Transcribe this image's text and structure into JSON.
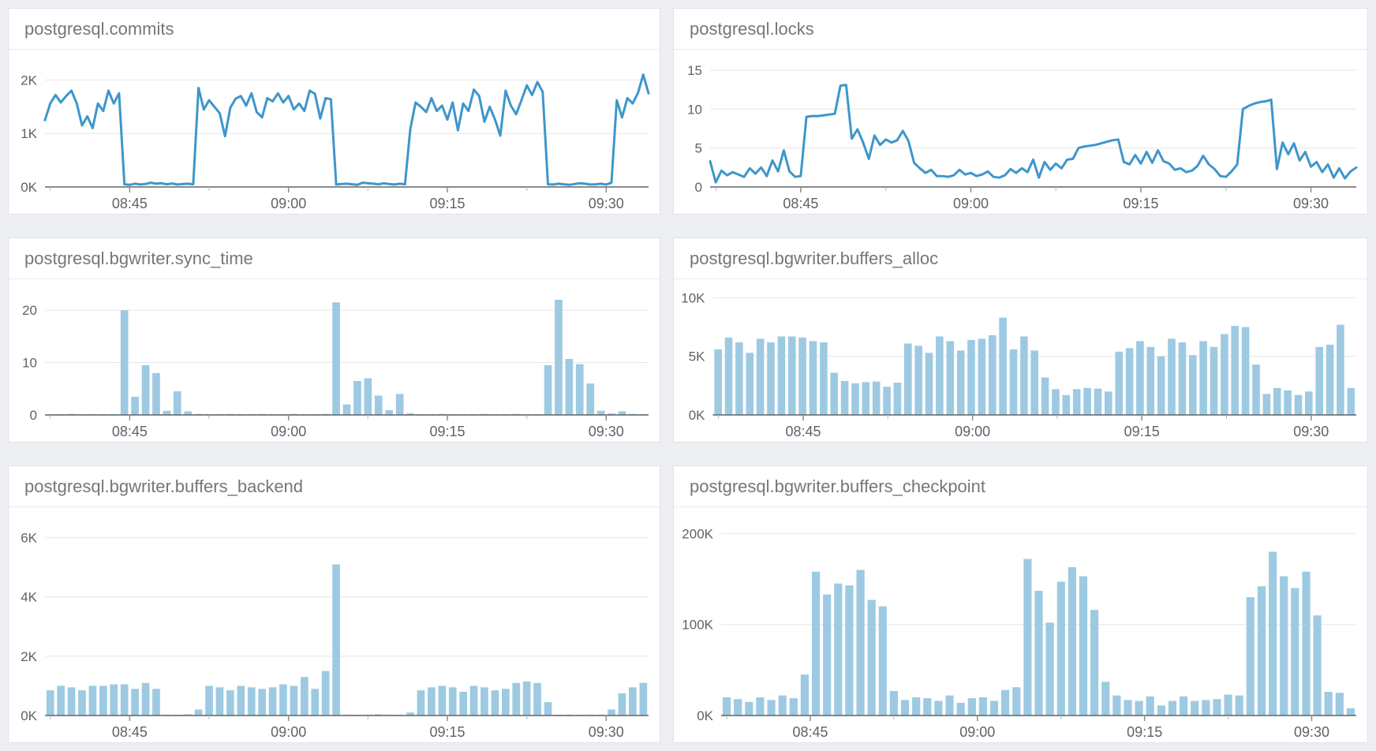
{
  "colors": {
    "line": "#3e96cb",
    "bar": "#9dcae2",
    "grid": "#e6e6e6",
    "baseline": "#606468",
    "tick": "#8a8d90",
    "minor_tick": "#b4b7ba",
    "label": "#5f6367",
    "title": "#73777b",
    "panel_bg": "#ffffff",
    "page_bg": "#edeff2"
  },
  "panels": [
    {
      "title": "postgresql.commits"
    },
    {
      "title": "postgresql.locks"
    },
    {
      "title": "postgresql.bgwriter.sync_time"
    },
    {
      "title": "postgresql.bgwriter.buffers_alloc"
    },
    {
      "title": "postgresql.bgwriter.buffers_backend"
    },
    {
      "title": "postgresql.bgwriter.buffers_checkpoint"
    }
  ],
  "chart_data": [
    {
      "type": "line",
      "title": "postgresql.commits",
      "x": {
        "start": "08:37",
        "end": "09:34",
        "step_seconds": 30,
        "ticks": [
          "08:45",
          "09:00",
          "09:15",
          "09:30"
        ]
      },
      "y": {
        "max": 2330,
        "ticks": [
          {
            "label": "0K",
            "value": 0
          },
          {
            "label": "1K",
            "value": 1000
          },
          {
            "label": "2K",
            "value": 2000
          }
        ]
      },
      "values": [
        1250,
        1560,
        1720,
        1580,
        1700,
        1800,
        1560,
        1150,
        1320,
        1100,
        1560,
        1420,
        1800,
        1560,
        1750,
        50,
        40,
        60,
        45,
        55,
        80,
        60,
        70,
        50,
        65,
        45,
        55,
        60,
        50,
        1850,
        1450,
        1620,
        1500,
        1380,
        950,
        1480,
        1650,
        1700,
        1520,
        1750,
        1400,
        1300,
        1660,
        1600,
        1750,
        1580,
        1700,
        1450,
        1560,
        1420,
        1800,
        1740,
        1280,
        1660,
        1640,
        45,
        55,
        60,
        50,
        40,
        80,
        70,
        60,
        50,
        70,
        55,
        45,
        60,
        50,
        1080,
        1580,
        1500,
        1400,
        1660,
        1420,
        1520,
        1260,
        1580,
        1060,
        1560,
        1420,
        1820,
        1700,
        1220,
        1500,
        1260,
        960,
        1800,
        1520,
        1360,
        1620,
        1900,
        1720,
        1960,
        1780,
        50,
        45,
        60,
        50,
        40,
        55,
        70,
        60,
        45,
        50,
        60,
        45,
        80,
        1620,
        1300,
        1660,
        1560,
        1760,
        2100,
        1750
      ]
    },
    {
      "type": "line",
      "title": "postgresql.locks",
      "x": {
        "start": "08:37",
        "end": "09:34",
        "step_seconds": 30,
        "ticks": [
          "08:45",
          "09:00",
          "09:15",
          "09:30"
        ]
      },
      "y": {
        "max": 16,
        "ticks": [
          {
            "label": "0",
            "value": 0
          },
          {
            "label": "5",
            "value": 5
          },
          {
            "label": "10",
            "value": 10
          },
          {
            "label": "15",
            "value": 15
          }
        ]
      },
      "values": [
        3.3,
        0.6,
        2.1,
        1.5,
        1.9,
        1.6,
        1.3,
        2.4,
        1.7,
        2.5,
        1.4,
        3.4,
        2.0,
        4.7,
        2.0,
        1.3,
        1.4,
        9.0,
        9.1,
        9.1,
        9.2,
        9.3,
        9.4,
        13.0,
        13.1,
        6.2,
        7.4,
        5.7,
        3.6,
        6.6,
        5.4,
        6.1,
        5.7,
        6.0,
        7.2,
        5.9,
        3.1,
        2.4,
        1.8,
        2.2,
        1.4,
        1.4,
        1.3,
        1.5,
        2.2,
        1.6,
        1.8,
        1.4,
        1.6,
        2.0,
        1.3,
        1.2,
        1.5,
        2.3,
        1.8,
        2.4,
        1.9,
        3.5,
        1.2,
        3.2,
        2.2,
        3.0,
        2.4,
        3.5,
        3.6,
        5.0,
        5.2,
        5.3,
        5.4,
        5.6,
        5.8,
        6.0,
        6.1,
        3.2,
        2.9,
        4.1,
        3.0,
        4.5,
        3.1,
        4.7,
        3.3,
        3.0,
        2.2,
        2.4,
        1.9,
        2.1,
        2.7,
        4.0,
        2.9,
        2.3,
        1.4,
        1.3,
        2.0,
        2.9,
        10.0,
        10.4,
        10.7,
        10.9,
        11.0,
        11.2,
        2.3,
        5.7,
        4.2,
        5.6,
        3.4,
        4.5,
        2.6,
        3.2,
        1.9,
        2.9,
        1.2,
        2.4,
        1.1,
        2.0,
        2.5
      ]
    },
    {
      "type": "bar",
      "title": "postgresql.bgwriter.sync_time",
      "x": {
        "start": "08:37",
        "end": "09:34",
        "step_seconds": 60,
        "ticks": [
          "08:45",
          "09:00",
          "09:15",
          "09:30"
        ]
      },
      "y": {
        "max": 23.5,
        "ticks": [
          {
            "label": "0",
            "value": 0
          },
          {
            "label": "10",
            "value": 10
          },
          {
            "label": "20",
            "value": 20
          }
        ]
      },
      "values": [
        0.15,
        0.1,
        0.2,
        0.1,
        0.15,
        0.1,
        0.15,
        20,
        3.5,
        9.5,
        8,
        0.8,
        4.5,
        0.7,
        0.2,
        0.15,
        0.1,
        0.2,
        0.1,
        0.15,
        0.2,
        0.1,
        0.15,
        0.2,
        0.1,
        0.15,
        0.2,
        21.5,
        2,
        6.5,
        7,
        3.7,
        0.9,
        4,
        0.3,
        0.15,
        0.1,
        0.2,
        0.1,
        0.15,
        0.1,
        0.2,
        0.15,
        0.1,
        0.2,
        0.1,
        0.15,
        9.5,
        22,
        10.7,
        9.7,
        6,
        0.8,
        0.3,
        0.7,
        0.2,
        0.1
      ]
    },
    {
      "type": "bar",
      "title": "postgresql.bgwriter.buffers_alloc",
      "x": {
        "start": "08:37",
        "end": "09:34",
        "step_seconds": 56,
        "ticks": [
          "08:45",
          "09:00",
          "09:15",
          "09:30"
        ]
      },
      "y": {
        "max": 10500,
        "ticks": [
          {
            "label": "0K",
            "value": 0
          },
          {
            "label": "5K",
            "value": 5000
          },
          {
            "label": "10K",
            "value": 10000
          }
        ]
      },
      "values": [
        5600,
        6600,
        6200,
        5300,
        6500,
        6200,
        6700,
        6700,
        6600,
        6300,
        6200,
        3600,
        2900,
        2700,
        2800,
        2850,
        2400,
        2750,
        6100,
        5900,
        5300,
        6700,
        6300,
        5500,
        6400,
        6500,
        6800,
        8300,
        5600,
        6700,
        5500,
        3200,
        2200,
        1700,
        2200,
        2300,
        2250,
        2000,
        5400,
        5700,
        6300,
        5800,
        5000,
        6500,
        6200,
        5100,
        6300,
        5800,
        6900,
        7600,
        7500,
        4300,
        1800,
        2300,
        2100,
        1700,
        2000,
        5800,
        6000,
        7700,
        2300
      ]
    },
    {
      "type": "bar",
      "title": "postgresql.bgwriter.buffers_backend",
      "x": {
        "start": "08:37",
        "end": "09:34",
        "step_seconds": 60,
        "ticks": [
          "08:45",
          "09:00",
          "09:15",
          "09:30"
        ]
      },
      "y": {
        "max": 6600,
        "ticks": [
          {
            "label": "0K",
            "value": 0
          },
          {
            "label": "2K",
            "value": 2000
          },
          {
            "label": "4K",
            "value": 4000
          },
          {
            "label": "6K",
            "value": 6000
          }
        ]
      },
      "values": [
        850,
        1000,
        950,
        850,
        1000,
        1000,
        1050,
        1050,
        900,
        1100,
        900,
        30,
        20,
        40,
        200,
        1000,
        950,
        850,
        1000,
        950,
        900,
        950,
        1050,
        1000,
        1300,
        900,
        1500,
        5100,
        30,
        20,
        30,
        40,
        30,
        20,
        100,
        850,
        950,
        1000,
        950,
        800,
        1000,
        950,
        850,
        900,
        1100,
        1150,
        1100,
        450,
        20,
        30,
        20,
        30,
        20,
        200,
        750,
        950,
        1100
      ]
    },
    {
      "type": "bar",
      "title": "postgresql.bgwriter.buffers_checkpoint",
      "x": {
        "start": "08:37",
        "end": "09:34",
        "step_seconds": 60,
        "ticks": [
          "08:45",
          "09:00",
          "09:15",
          "09:30"
        ]
      },
      "y": {
        "max": 215000,
        "ticks": [
          {
            "label": "0K",
            "value": 0
          },
          {
            "label": "100K",
            "value": 100000
          },
          {
            "label": "200K",
            "value": 200000
          }
        ]
      },
      "values": [
        20000,
        18000,
        15000,
        20000,
        17000,
        22000,
        19000,
        45000,
        158000,
        133000,
        145000,
        143000,
        160000,
        127000,
        120000,
        27000,
        17000,
        20000,
        19000,
        16000,
        22000,
        14000,
        19000,
        20000,
        16000,
        28000,
        31000,
        172000,
        137000,
        102000,
        147000,
        163000,
        153000,
        116000,
        37000,
        22000,
        17000,
        16000,
        21000,
        11000,
        16000,
        21000,
        16000,
        17000,
        18000,
        23000,
        22000,
        130000,
        142000,
        180000,
        153000,
        140000,
        158000,
        110000,
        26000,
        25000,
        8000
      ]
    }
  ]
}
